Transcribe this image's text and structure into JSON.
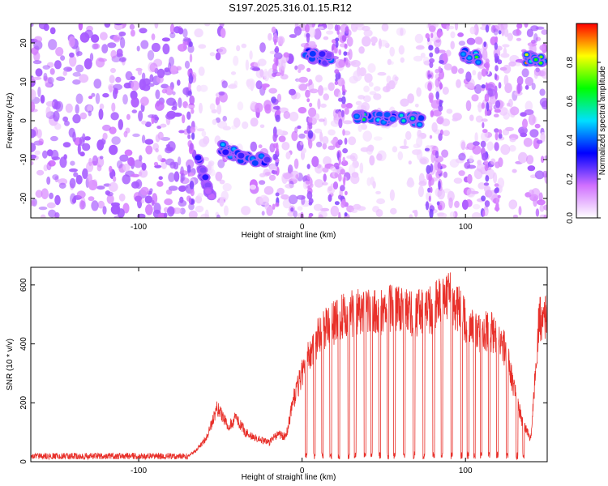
{
  "title": "S197.2025.316.01.15.R12",
  "chart_data": [
    {
      "type": "heatmap",
      "xlabel": "Height of straight line (km)",
      "ylabel": "Frequency (Hz)",
      "xlim": [
        -166,
        150
      ],
      "ylim": [
        -25,
        25
      ],
      "xticks": [
        -100,
        0,
        100
      ],
      "yticks": [
        -20,
        -10,
        0,
        10,
        20
      ],
      "colorbar": {
        "label": "Normalized spectral amplitude",
        "range": [
          0.0,
          1.0
        ],
        "ticks": [
          "0.0",
          "0.2",
          "0.4",
          "0.6",
          "0.8"
        ],
        "stops": [
          "#ffffff",
          "#d070ff",
          "#0000ff",
          "#00e0ff",
          "#00ff00",
          "#ffff00",
          "#ff0000"
        ]
      },
      "features": [
        {
          "x": [
            -65,
            -55
          ],
          "y": [
            -20,
            -9
          ],
          "peak": 0.3
        },
        {
          "x": [
            -50,
            -40
          ],
          "y": [
            -12,
            -7
          ],
          "peak": 0.45
        },
        {
          "x": [
            -40,
            -20
          ],
          "y": [
            -14,
            -9
          ],
          "peak": 0.4
        },
        {
          "x": [
            2,
            18
          ],
          "y": [
            13,
            17
          ],
          "peak": 0.4
        },
        {
          "x": [
            32,
            74
          ],
          "y": [
            -2,
            1
          ],
          "peak": 0.6
        },
        {
          "x": [
            98,
            108
          ],
          "y": [
            14,
            17
          ],
          "peak": 0.65
        },
        {
          "x": [
            136,
            148
          ],
          "y": [
            14,
            16
          ],
          "peak": 0.85
        }
      ]
    },
    {
      "type": "line",
      "xlabel": "Height of straight line (km)",
      "ylabel": "SNR (10 * v/v)",
      "xlim": [
        -166,
        150
      ],
      "ylim": [
        0,
        660
      ],
      "xticks": [
        -100,
        0,
        100
      ],
      "yticks": [
        0,
        200,
        400,
        600
      ],
      "series": [
        {
          "name": "SNR",
          "color": "#e8302a",
          "envelope_x": [
            -166,
            -70,
            -65,
            -58,
            -52,
            -45,
            -40,
            -35,
            -30,
            -25,
            -20,
            -15,
            -10,
            -5,
            0,
            5,
            10,
            15,
            20,
            25,
            30,
            35,
            40,
            45,
            50,
            55,
            60,
            65,
            70,
            75,
            80,
            85,
            90,
            95,
            100,
            105,
            110,
            115,
            120,
            125,
            130,
            135,
            140,
            145,
            150
          ],
          "envelope_y": [
            18,
            20,
            40,
            90,
            200,
            130,
            160,
            110,
            90,
            80,
            70,
            100,
            90,
            230,
            320,
            400,
            460,
            490,
            510,
            530,
            540,
            550,
            545,
            540,
            545,
            560,
            560,
            550,
            540,
            560,
            550,
            600,
            610,
            560,
            520,
            480,
            470,
            480,
            450,
            400,
            260,
            140,
            80,
            520,
            520
          ]
        }
      ]
    }
  ]
}
